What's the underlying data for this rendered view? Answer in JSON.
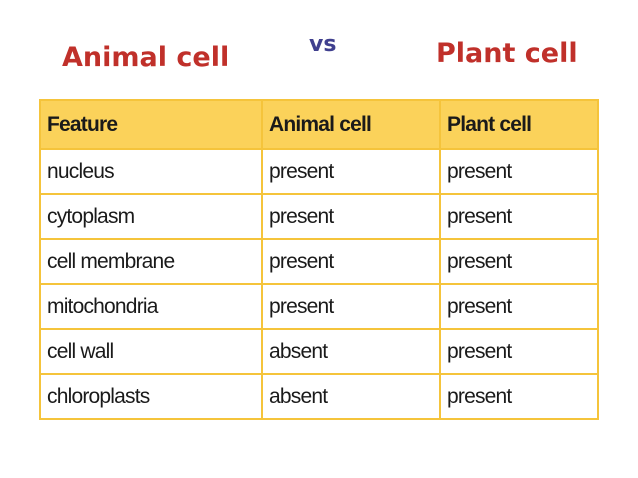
{
  "slide": {
    "left_title": "Animal cell",
    "middle_title": "vs",
    "right_title": "Plant cell"
  },
  "table": {
    "headers": [
      "Feature",
      "Animal cell",
      "Plant cell"
    ],
    "rows": [
      [
        "nucleus",
        "present",
        "present"
      ],
      [
        "cytoplasm",
        "present",
        "present"
      ],
      [
        "cell membrane",
        "present",
        "present"
      ],
      [
        "mitochondria",
        "present",
        "present"
      ],
      [
        "cell wall",
        "absent",
        "present"
      ],
      [
        "chloroplasts",
        "absent",
        "present"
      ]
    ]
  },
  "colors": {
    "title_red": "#c0302a",
    "vs_blue": "#3f3f8e",
    "header_fill": "#fbd25a",
    "border_gold": "#f5c43b"
  }
}
